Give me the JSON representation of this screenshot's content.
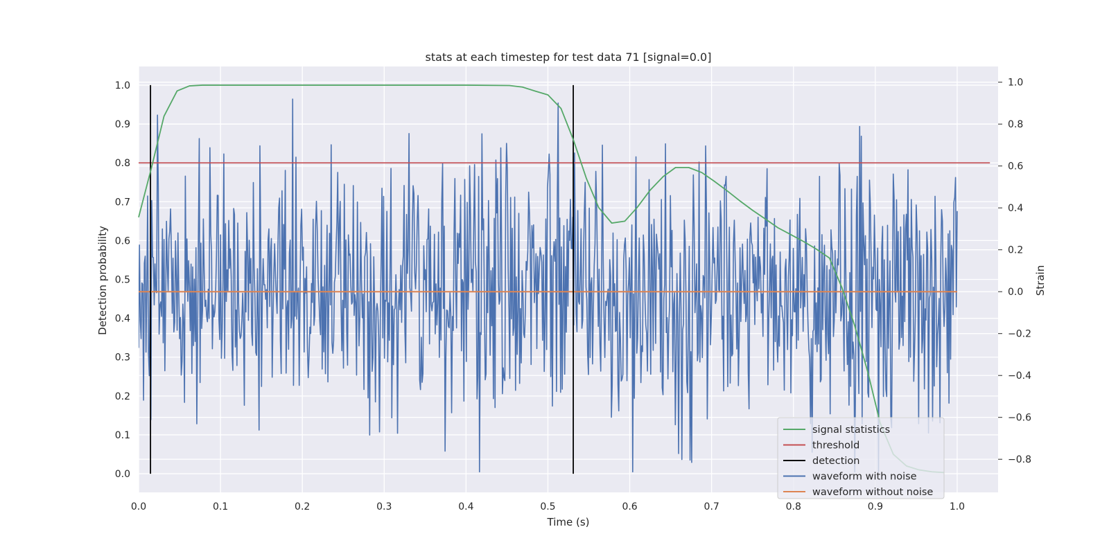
{
  "chart_data": {
    "type": "line",
    "title": "stats at each timestep for test data 71 [signal=0.0]",
    "xlabel": "Time (s)",
    "ylabel": "Detection probability",
    "ylabel_right": "Strain",
    "xlim": [
      0.0,
      1.05
    ],
    "ylim": [
      -0.048,
      1.048
    ],
    "ylim_right": [
      -0.958,
      1.075
    ],
    "x_ticks": [
      "0.0",
      "0.1",
      "0.2",
      "0.3",
      "0.4",
      "0.5",
      "0.6",
      "0.7",
      "0.8",
      "0.9",
      "1.0"
    ],
    "y_ticks": [
      "0.0",
      "0.1",
      "0.2",
      "0.3",
      "0.4",
      "0.5",
      "0.6",
      "0.7",
      "0.8",
      "0.9",
      "1.0"
    ],
    "y_right_ticks": [
      "−0.8",
      "−0.6",
      "−0.4",
      "−0.2",
      "0.0",
      "0.2",
      "0.4",
      "0.6",
      "0.8",
      "1.0"
    ],
    "grid": true,
    "legend_position": "lower-right",
    "series": [
      {
        "name": "signal statistics",
        "color": "#55a868",
        "axis": "left",
        "x": [
          0.0,
          0.016,
          0.031,
          0.047,
          0.062,
          0.078,
          0.094,
          0.109,
          0.25,
          0.4,
          0.453,
          0.469,
          0.484,
          0.5,
          0.516,
          0.531,
          0.547,
          0.562,
          0.578,
          0.594,
          0.609,
          0.625,
          0.641,
          0.656,
          0.672,
          0.688,
          0.703,
          0.719,
          0.734,
          0.75,
          0.766,
          0.781,
          0.797,
          0.812,
          0.828,
          0.844,
          0.859,
          0.875,
          0.891,
          0.906,
          0.922,
          0.938,
          0.953,
          0.969,
          0.984
        ],
        "y": [
          0.66,
          0.79,
          0.92,
          0.985,
          0.998,
          1.0,
          1.0,
          1.0,
          1.0,
          1.0,
          0.999,
          0.995,
          0.985,
          0.975,
          0.94,
          0.86,
          0.76,
          0.685,
          0.645,
          0.65,
          0.685,
          0.73,
          0.765,
          0.788,
          0.788,
          0.775,
          0.753,
          0.728,
          0.703,
          0.678,
          0.655,
          0.633,
          0.615,
          0.598,
          0.578,
          0.555,
          0.48,
          0.38,
          0.26,
          0.13,
          0.05,
          0.02,
          0.01,
          0.005,
          0.003
        ]
      },
      {
        "name": "threshold",
        "color": "#c44e52",
        "axis": "left",
        "x": [
          0.0,
          1.04
        ],
        "y": [
          0.8,
          0.8
        ]
      },
      {
        "name": "detection",
        "color": "#000000",
        "axis": "left",
        "x": [
          0.0145,
          0.531
        ],
        "y": [
          0.0,
          1.0
        ],
        "style": "vertical-lines"
      },
      {
        "name": "waveform with noise",
        "color": "#4c72b0",
        "axis": "right",
        "x_range": [
          0.0,
          1.0
        ],
        "n_points": 1000,
        "y_range": [
          -0.86,
          1.0
        ],
        "std": 0.3
      },
      {
        "name": "waveform without noise",
        "color": "#dd8452",
        "axis": "right",
        "x": [
          0.0,
          1.0
        ],
        "y": [
          0.0,
          0.0
        ]
      }
    ]
  }
}
